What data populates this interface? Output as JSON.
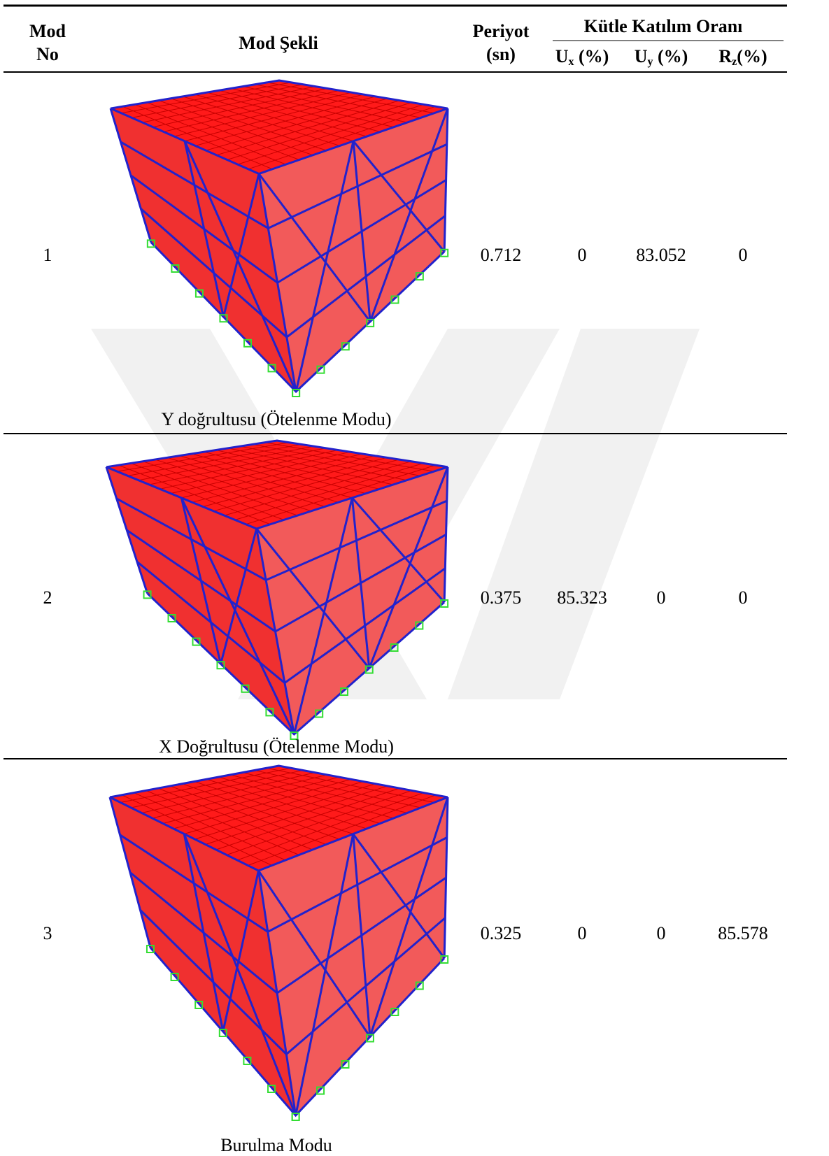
{
  "header": {
    "mod_no": [
      "Mod",
      "No"
    ],
    "mod_shape": "Mod Şekli",
    "period": [
      "Periyot",
      "(sn)"
    ],
    "group": "Kütle Katılım Oranı",
    "ux": {
      "main": "U",
      "sub": "x",
      "suffix": " (%)"
    },
    "uy": {
      "main": "U",
      "sub": "y",
      "suffix": " (%)"
    },
    "rz": {
      "main": "R",
      "sub": "z",
      "suffix": "(%)"
    }
  },
  "table": {
    "rows": [
      {
        "mod_no": "1",
        "caption": "Y doğrultusu (Ötelenme Modu)",
        "period": "0.712",
        "ux": "0",
        "uy": "83.052",
        "rz": "0"
      },
      {
        "mod_no": "2",
        "caption": "X Doğrultusu (Ötelenme Modu)",
        "period": "0.375",
        "ux": "85.323",
        "uy": "0",
        "rz": "0"
      },
      {
        "mod_no": "3",
        "caption": "Burulma Modu",
        "period": "0.325",
        "ux": "0",
        "uy": "0",
        "rz": "85.578"
      }
    ]
  }
}
